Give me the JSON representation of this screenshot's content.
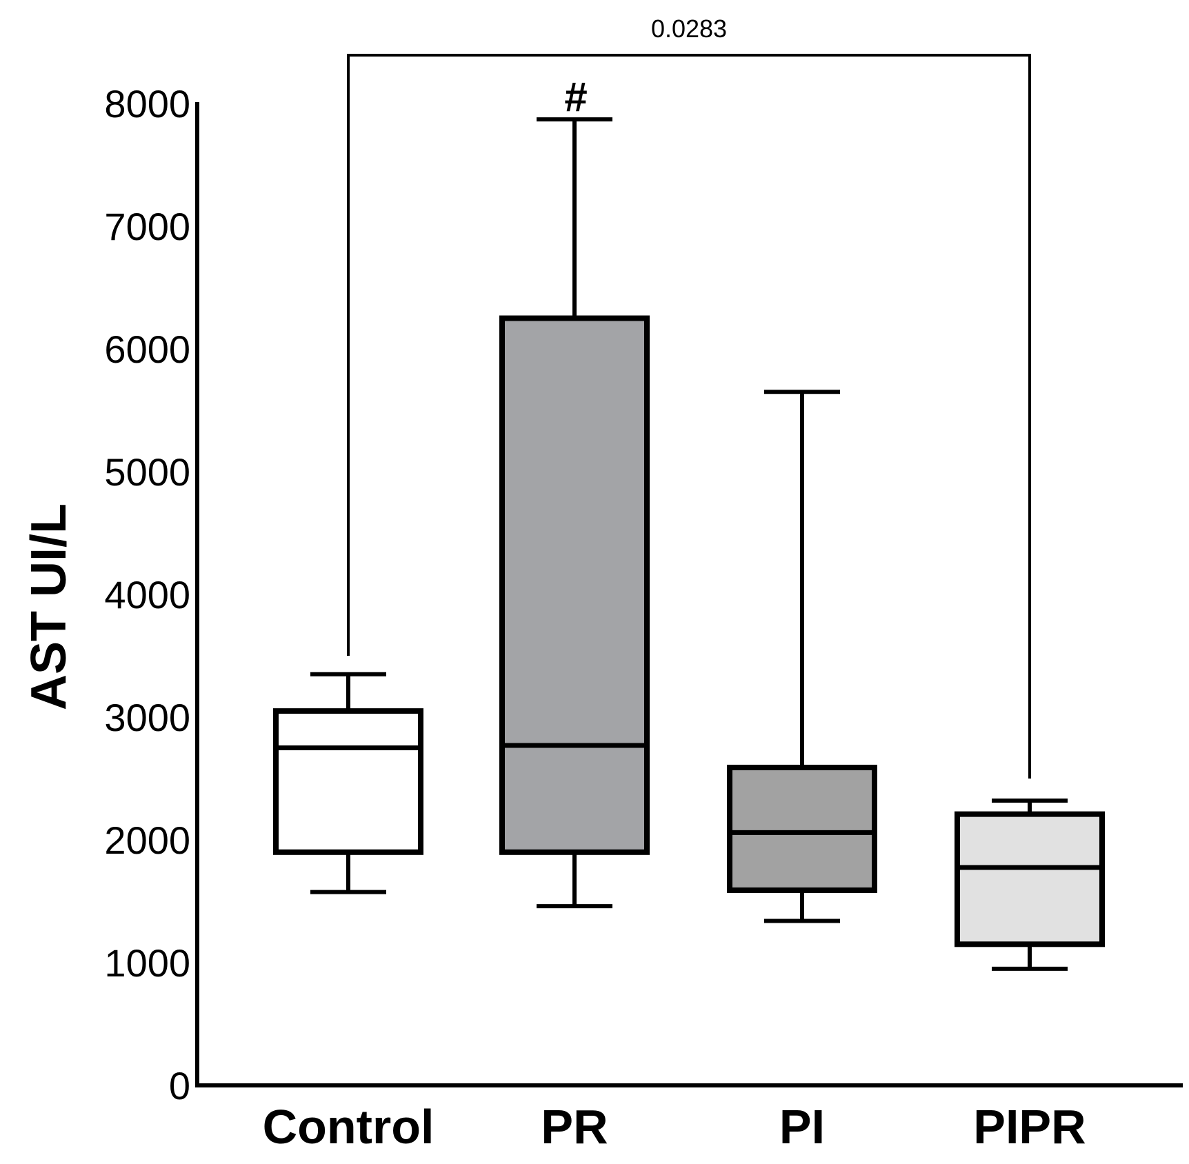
{
  "chart_data": {
    "type": "boxplot",
    "title": "",
    "xlabel": "",
    "ylabel": "AST UI/L",
    "ylim": [
      0,
      8000
    ],
    "yticks": [
      "0",
      "1000",
      "2000",
      "3000",
      "4000",
      "5000",
      "6000",
      "7000",
      "8000"
    ],
    "yticks_values": [
      0,
      1000,
      2000,
      3000,
      4000,
      5000,
      6000,
      7000,
      8000
    ],
    "categories": [
      "Control",
      "PR",
      "PI",
      "PIPR"
    ],
    "boxes": [
      {
        "name": "Control",
        "whisker_low": 1575,
        "q1": 1900,
        "median": 2750,
        "q3": 3050,
        "whisker_high": 3350,
        "fill": "#ffffff"
      },
      {
        "name": "PR",
        "whisker_low": 1460,
        "q1": 1900,
        "median": 2770,
        "q3": 6250,
        "whisker_high": 7870,
        "fill": "#a3a4a7",
        "annotation": "#"
      },
      {
        "name": "PI",
        "whisker_low": 1340,
        "q1": 1590,
        "median": 2060,
        "q3": 2590,
        "whisker_high": 5650,
        "fill": "#a2a2a2"
      },
      {
        "name": "PIPR",
        "whisker_low": 950,
        "q1": 1150,
        "median": 1775,
        "q3": 2210,
        "whisker_high": 2320,
        "fill": "#e1e1e1"
      }
    ],
    "comparisons": [
      {
        "from": "Control",
        "to": "PIPR",
        "label": "0.0283",
        "from_value": 3500,
        "to_value": 2500
      }
    ],
    "grid": false,
    "legend": "none"
  }
}
